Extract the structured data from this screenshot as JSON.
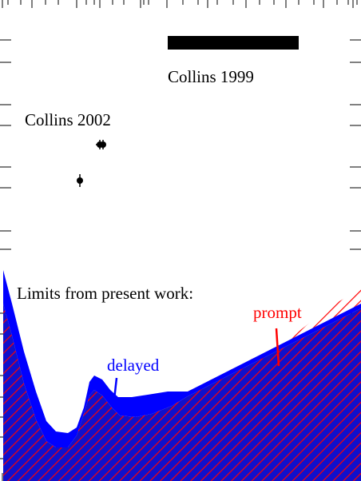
{
  "chart_data": {
    "type": "area",
    "title": "",
    "xlabel": "",
    "ylabel": "",
    "axes_labels_visible": false,
    "grid": false,
    "annotations": {
      "collins_1999": "Collins 1999",
      "collins_2002": "Collins 2002",
      "limits_heading": "Limits from present work:",
      "delayed": "delayed",
      "prompt": "prompt"
    },
    "colors": {
      "delayed": "#0000ff",
      "prompt": "#ff0000",
      "hatch": "#ff0000",
      "text": "#000000"
    },
    "x_range": [
      0,
      452
    ],
    "y_range": [
      0,
      602
    ],
    "series": [
      {
        "name": "delayed",
        "fill": "solid blue band",
        "upper": [
          [
            4,
            338
          ],
          [
            15,
            380
          ],
          [
            30,
            440
          ],
          [
            45,
            490
          ],
          [
            58,
            527
          ],
          [
            70,
            540
          ],
          [
            85,
            542
          ],
          [
            96,
            535
          ],
          [
            105,
            510
          ],
          [
            112,
            478
          ],
          [
            118,
            470
          ],
          [
            128,
            475
          ],
          [
            138,
            488
          ],
          [
            148,
            497
          ],
          [
            165,
            497
          ],
          [
            185,
            494
          ],
          [
            210,
            490
          ],
          [
            235,
            490
          ],
          [
            452,
            380
          ]
        ],
        "lower": [
          [
            4,
            380
          ],
          [
            15,
            420
          ],
          [
            30,
            480
          ],
          [
            45,
            525
          ],
          [
            58,
            552
          ],
          [
            70,
            560
          ],
          [
            85,
            560
          ],
          [
            96,
            545
          ],
          [
            105,
            518
          ],
          [
            112,
            495
          ],
          [
            118,
            488
          ],
          [
            128,
            495
          ],
          [
            140,
            510
          ],
          [
            150,
            520
          ],
          [
            170,
            522
          ],
          [
            190,
            518
          ],
          [
            215,
            508
          ],
          [
            235,
            496
          ],
          [
            452,
            386
          ]
        ]
      },
      {
        "name": "prompt",
        "fill": "red hatched",
        "upper": [
          [
            235,
            496
          ],
          [
            260,
            488
          ],
          [
            290,
            475
          ],
          [
            320,
            455
          ],
          [
            345,
            440
          ],
          [
            370,
            418
          ],
          [
            395,
            398
          ],
          [
            420,
            380
          ],
          [
            445,
            365
          ],
          [
            452,
            362
          ]
        ]
      }
    ],
    "points": [
      {
        "x": 125,
        "y": 181,
        "y_err": 6,
        "x_err": 5,
        "label": "Collins 2002"
      },
      {
        "x": 129,
        "y": 181,
        "y_err": 6,
        "x_err": 0,
        "label": "Collins 2002"
      },
      {
        "x": 100,
        "y": 226,
        "y_err": 8,
        "x_err": 0,
        "label": "Collins 2002"
      }
    ],
    "bars": [
      {
        "x_from": 210,
        "x_to": 374,
        "y_from": 45,
        "y_to": 62,
        "label": "Collins 1999"
      }
    ],
    "pointers": [
      {
        "series": "delayed",
        "from": [
          146,
          473
        ],
        "to": [
          143,
          500
        ]
      },
      {
        "series": "prompt",
        "from": [
          346,
          411
        ],
        "to": [
          349,
          458
        ]
      }
    ],
    "ticks": {
      "top": [
        3,
        10,
        26,
        40,
        57,
        73,
        96,
        108,
        118,
        125,
        141,
        155,
        176,
        180,
        186,
        209,
        229,
        248,
        260,
        272,
        292,
        308,
        325,
        343,
        358,
        374,
        393,
        405,
        422,
        436,
        442,
        447
      ],
      "bottom": [
        3,
        10,
        20,
        38,
        48,
        60,
        74,
        90,
        104,
        110,
        116,
        132,
        143,
        158,
        165,
        174,
        192,
        208,
        215,
        227,
        238,
        253,
        265,
        275,
        296,
        309,
        314,
        323,
        344,
        348,
        357,
        381,
        386,
        408,
        420,
        437,
        441
      ],
      "left": [
        50,
        78,
        131,
        157,
        209,
        235,
        289,
        312,
        392,
        418,
        470,
        497,
        522,
        547,
        574
      ],
      "right": [
        50,
        78,
        131,
        157,
        209,
        235,
        289,
        312,
        392,
        418,
        470,
        497,
        522,
        547,
        574
      ]
    }
  }
}
